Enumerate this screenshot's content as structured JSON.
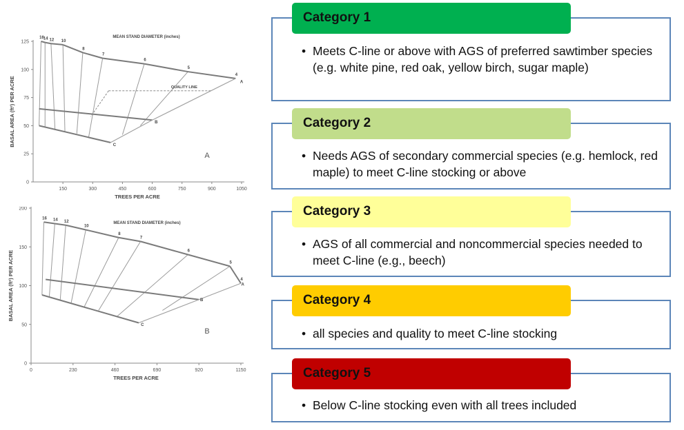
{
  "charts": [
    {
      "id": "A",
      "panel_label": "A",
      "title": "MEAN STAND DIAMETER (inches)",
      "xlabel": "TREES PER ACRE",
      "ylabel": "BASAL AREA (ft²) PER ACRE",
      "x_ticks": [
        "150",
        "300",
        "450",
        "600",
        "750",
        "900",
        "1050"
      ],
      "y_ticks": [
        "0",
        "25",
        "50",
        "75",
        "100",
        "125"
      ],
      "quality_label": "QUALITY LINE",
      "chart_data": {
        "type": "line",
        "xlim": [
          0,
          1050
        ],
        "ylim": [
          0,
          125
        ],
        "x_tick_values": [
          150,
          300,
          450,
          600,
          750,
          900,
          1050
        ],
        "y_tick_values": [
          0,
          25,
          50,
          75,
          100,
          125
        ],
        "a_line": [
          [
            40,
            125
          ],
          [
            60,
            124
          ],
          [
            90,
            123
          ],
          [
            150,
            122
          ],
          [
            250,
            115
          ],
          [
            350,
            110
          ],
          [
            560,
            105
          ],
          [
            780,
            98
          ],
          [
            1020,
            92
          ]
        ],
        "b_line": [
          [
            30,
            65
          ],
          [
            600,
            55
          ]
        ],
        "c_line": [
          [
            30,
            50
          ],
          [
            390,
            35
          ]
        ],
        "b_to_a": [
          [
            600,
            55
          ],
          [
            1020,
            92
          ]
        ],
        "c_to_b": [
          [
            390,
            35
          ],
          [
            600,
            55
          ]
        ],
        "quality_line": [
          [
            380,
            81
          ],
          [
            900,
            81
          ]
        ],
        "quality_drop": [
          [
            380,
            81
          ],
          [
            290,
            58
          ]
        ],
        "diameter_lines": [
          {
            "label": "16",
            "top": [
              40,
              125
            ],
            "bottom": [
              30,
              50
            ]
          },
          {
            "label": "14",
            "top": [
              60,
              124
            ],
            "bottom": [
              60,
              49
            ]
          },
          {
            "label": "12",
            "top": [
              90,
              123
            ],
            "bottom": [
              110,
              47
            ]
          },
          {
            "label": "10",
            "top": [
              150,
              122
            ],
            "bottom": [
              160,
              45
            ]
          },
          {
            "label": "8",
            "top": [
              250,
              115
            ],
            "bottom": [
              220,
              43
            ]
          },
          {
            "label": "7",
            "top": [
              350,
              110
            ],
            "bottom": [
              280,
              40
            ]
          },
          {
            "label": "6",
            "top": [
              560,
              105
            ],
            "bottom": [
              450,
              42
            ]
          },
          {
            "label": "5",
            "top": [
              780,
              98
            ],
            "bottom": [
              540,
              50
            ]
          },
          {
            "label": "4",
            "top": [
              1020,
              92
            ],
            "bottom": [
              1020,
              92
            ]
          }
        ],
        "end_labels": {
          "A": [
            1050,
            88
          ],
          "B": [
            620,
            52
          ],
          "C": [
            410,
            32
          ]
        }
      }
    },
    {
      "id": "B",
      "panel_label": "B",
      "title": "MEAN STAND DIAMETER (inches)",
      "xlabel": "TREES PER ACRE",
      "ylabel": "BASAL AREA (ft²) PER ACRE",
      "x_ticks": [
        "0",
        "230",
        "460",
        "690",
        "920",
        "1150"
      ],
      "y_ticks": [
        "0",
        "50",
        "100",
        "150",
        "200"
      ],
      "chart_data": {
        "type": "line",
        "xlim": [
          0,
          1150
        ],
        "ylim": [
          0,
          200
        ],
        "x_tick_values": [
          0,
          230,
          460,
          690,
          920,
          1150
        ],
        "y_tick_values": [
          0,
          50,
          100,
          150,
          200
        ],
        "a_line": [
          [
            70,
            182
          ],
          [
            130,
            180
          ],
          [
            190,
            178
          ],
          [
            300,
            172
          ],
          [
            480,
            162
          ],
          [
            600,
            157
          ],
          [
            860,
            140
          ],
          [
            1090,
            125
          ],
          [
            1150,
            103
          ]
        ],
        "b_line": [
          [
            80,
            108
          ],
          [
            920,
            82
          ]
        ],
        "c_line": [
          [
            60,
            88
          ],
          [
            590,
            52
          ]
        ],
        "b_to_a": [
          [
            920,
            82
          ],
          [
            1150,
            103
          ]
        ],
        "c_to_b": [
          [
            590,
            52
          ],
          [
            920,
            82
          ]
        ],
        "diameter_lines": [
          {
            "label": "16",
            "top": [
              70,
              182
            ],
            "bottom": [
              60,
              88
            ]
          },
          {
            "label": "14",
            "top": [
              130,
              180
            ],
            "bottom": [
              100,
              86
            ]
          },
          {
            "label": "12",
            "top": [
              190,
              178
            ],
            "bottom": [
              160,
              82
            ]
          },
          {
            "label": "10",
            "top": [
              300,
              172
            ],
            "bottom": [
              220,
              78
            ]
          },
          {
            "label": "8",
            "top": [
              480,
              162
            ],
            "bottom": [
              290,
              72
            ]
          },
          {
            "label": "7",
            "top": [
              600,
              157
            ],
            "bottom": [
              370,
              68
            ]
          },
          {
            "label": "6",
            "top": [
              860,
              140
            ],
            "bottom": [
              470,
              60
            ]
          },
          {
            "label": "5",
            "top": [
              1090,
              125
            ],
            "bottom": [
              720,
              68
            ]
          },
          {
            "label": "4",
            "top": [
              1150,
              103
            ],
            "bottom": [
              1150,
              103
            ]
          }
        ],
        "end_labels": {
          "A": [
            1160,
            100
          ],
          "B": [
            935,
            80
          ],
          "C": [
            610,
            48
          ]
        }
      }
    }
  ],
  "categories": [
    {
      "title": "Category 1",
      "color": "#00b050",
      "text": "Meets C-line or above with AGS of preferred sawtimber species (e.g. white pine, red oak, yellow birch, sugar maple)"
    },
    {
      "title": "Category 2",
      "color": "#c1dd8b",
      "text": "Needs AGS of secondary commercial species (e.g. hemlock, red maple) to meet C-line stocking or above"
    },
    {
      "title": "Category 3",
      "color": "#ffff99",
      "text": "AGS of all commercial and noncommercial species needed to meet C-line (e.g., beech)"
    },
    {
      "title": "Category 4",
      "color": "#ffcc00",
      "text": "all species and quality to meet C-line stocking"
    },
    {
      "title": "Category 5",
      "color": "#c00000",
      "text": "Below C-line stocking even with all trees included"
    }
  ]
}
